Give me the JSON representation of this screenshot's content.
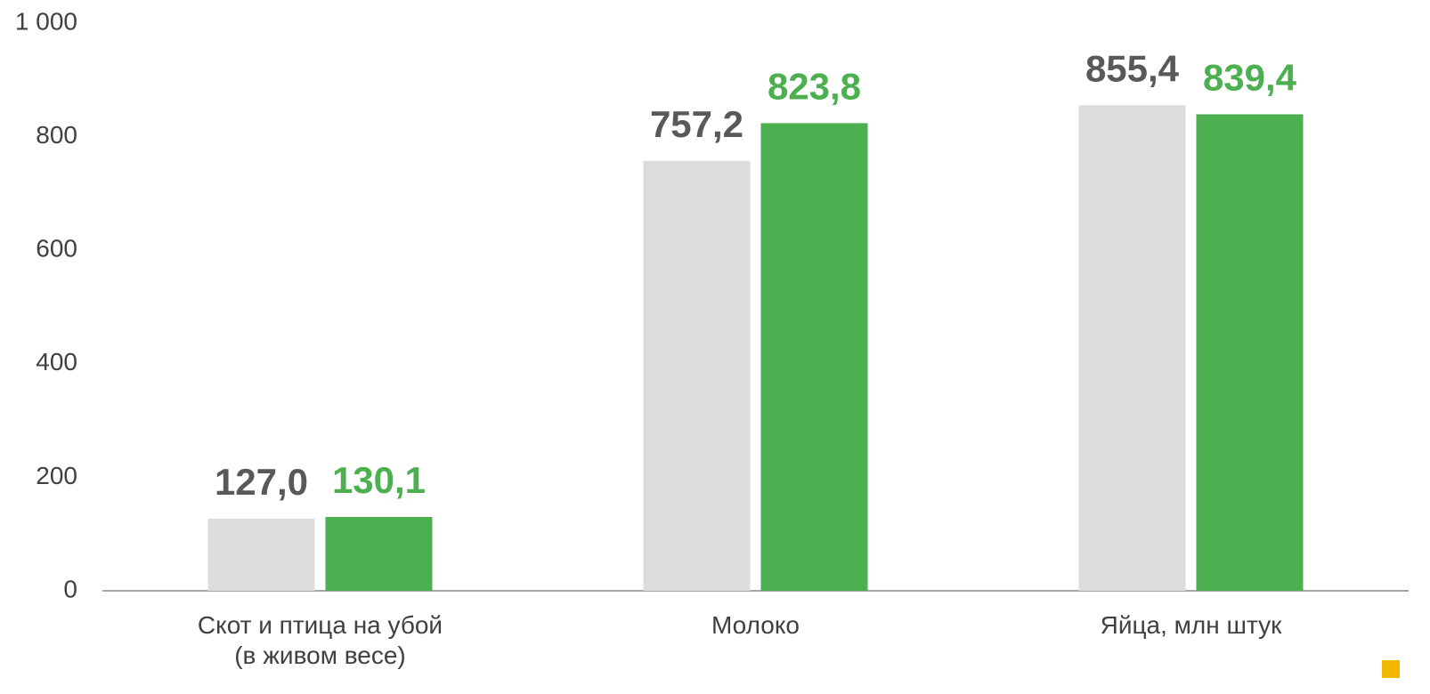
{
  "chart_data": {
    "type": "bar",
    "categories": [
      "Скот и птица на убой\n(в живом весе)",
      "Молоко",
      "Яйца, млн штук"
    ],
    "series": [
      {
        "color": "#dcdcdc",
        "label_color": "#595959",
        "values": [
          127.0,
          757.2,
          855.4
        ],
        "value_labels": [
          "127,0",
          "757,2",
          "855,4"
        ]
      },
      {
        "color": "#4caf50",
        "label_color": "#4caf50",
        "values": [
          130.1,
          823.8,
          839.4
        ],
        "value_labels": [
          "130,1",
          "823,8",
          "839,4"
        ]
      }
    ],
    "ylim": [
      0,
      1000
    ],
    "yticks": [
      0,
      200,
      400,
      600,
      800,
      {
        "value": 1000,
        "label": "1 000"
      }
    ],
    "grid": false
  }
}
